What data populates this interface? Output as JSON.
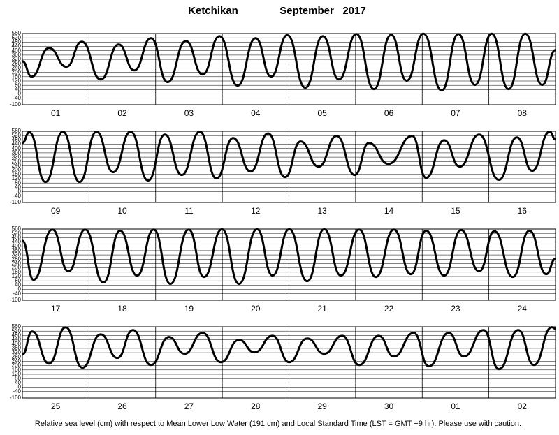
{
  "title": "Ketchikan",
  "period": "September   2017",
  "note": "Relative sea level (cm) with respect to Mean Lower Low Water (191 cm) and Local Standard Time (LST = GMT −9 hr). Please use with caution.",
  "chart_data": [
    {
      "type": "line",
      "color": "#000000",
      "categories": [
        "01",
        "02",
        "03",
        "04",
        "05",
        "06",
        "07",
        "08"
      ],
      "xlim": [
        0,
        192
      ],
      "x": [
        0,
        3.3,
        9.6,
        15.9,
        21.4,
        28.2,
        34.7,
        40.3,
        46.3,
        52.3,
        58.9,
        64.9,
        71,
        77.5,
        84,
        89.6,
        95.4,
        101.9,
        108.2,
        114,
        120.3,
        126.6,
        132.8,
        138.4,
        144.4,
        151,
        157,
        163,
        169,
        175.1,
        181.1,
        187.2,
        192
      ],
      "values": [
        303,
        161,
        426,
        252,
        484,
        135,
        458,
        219,
        516,
        110,
        490,
        181,
        535,
        77,
        516,
        161,
        545,
        58,
        535,
        135,
        555,
        45,
        548,
        123,
        558,
        32,
        555,
        84,
        558,
        45,
        558,
        84,
        406
      ],
      "ylim": [
        -100,
        560
      ],
      "yticks": [
        -100,
        -40,
        0,
        40,
        80,
        120,
        160,
        200,
        240,
        280,
        320,
        360,
        400,
        440,
        480,
        520,
        560
      ]
    },
    {
      "type": "line",
      "color": "#000000",
      "categories": [
        "09",
        "10",
        "11",
        "12",
        "13",
        "14",
        "15",
        "16"
      ],
      "xlim": [
        0,
        192
      ],
      "x": [
        0,
        2.5,
        8.3,
        14.6,
        20.6,
        26.7,
        32.7,
        39,
        45.3,
        51.3,
        57.4,
        63.9,
        69.9,
        75.9,
        82.2,
        88.5,
        94.6,
        100.2,
        106.7,
        113.2,
        119.7,
        124.8,
        131.8,
        140.4,
        145.4,
        151.9,
        157.5,
        164.5,
        171.6,
        178.1,
        183.6,
        189.9,
        192
      ],
      "values": [
        452,
        550,
        90,
        555,
        90,
        555,
        181,
        555,
        103,
        529,
        155,
        555,
        123,
        497,
        187,
        540,
        135,
        465,
        232,
        516,
        155,
        452,
        258,
        516,
        129,
        477,
        232,
        529,
        110,
        503,
        194,
        555,
        484
      ],
      "ylim": [
        -100,
        560
      ],
      "yticks": [
        -100,
        -40,
        0,
        40,
        80,
        120,
        160,
        200,
        240,
        280,
        320,
        360,
        400,
        440,
        480,
        520,
        560
      ]
    },
    {
      "type": "line",
      "color": "#000000",
      "categories": [
        "17",
        "18",
        "19",
        "20",
        "21",
        "22",
        "23",
        "24"
      ],
      "xlim": [
        0,
        192
      ],
      "x": [
        0,
        4,
        10.8,
        16.6,
        22.6,
        29.2,
        35.2,
        41.3,
        47.3,
        53.3,
        59.9,
        65.4,
        71.9,
        78,
        84.5,
        90.1,
        96.1,
        102.6,
        108.7,
        114.7,
        121.3,
        127.3,
        133.8,
        139.9,
        145.4,
        151.9,
        158,
        164.5,
        170,
        176.6,
        182.6,
        188.7,
        192
      ],
      "values": [
        452,
        90,
        555,
        168,
        555,
        65,
        545,
        129,
        555,
        52,
        555,
        116,
        558,
        52,
        558,
        129,
        558,
        77,
        558,
        129,
        555,
        116,
        555,
        142,
        545,
        129,
        550,
        168,
        540,
        116,
        545,
        142,
        284
      ],
      "ylim": [
        -100,
        560
      ],
      "yticks": [
        -100,
        -40,
        0,
        40,
        80,
        120,
        160,
        200,
        240,
        280,
        320,
        360,
        400,
        440,
        480,
        520,
        560
      ]
    },
    {
      "type": "line",
      "color": "#000000",
      "categories": [
        "25",
        "26",
        "27",
        "28",
        "29",
        "30",
        "01",
        "02"
      ],
      "xlim": [
        0,
        192
      ],
      "x": [
        0,
        3.5,
        9.6,
        15.6,
        21.6,
        28.2,
        34.2,
        39.8,
        46.3,
        52.8,
        58.4,
        64.9,
        71.5,
        78,
        83.6,
        90.1,
        96.1,
        102.6,
        108.7,
        115.2,
        121.3,
        128.3,
        133.8,
        140.9,
        146.4,
        153.5,
        159,
        166.1,
        171.6,
        178.6,
        184.2,
        190.7,
        192
      ],
      "values": [
        303,
        516,
        219,
        555,
        181,
        490,
        271,
        529,
        206,
        465,
        310,
        503,
        232,
        439,
        323,
        477,
        232,
        452,
        310,
        477,
        206,
        477,
        284,
        503,
        194,
        503,
        284,
        529,
        168,
        529,
        206,
        556,
        542
      ],
      "ylim": [
        -100,
        560
      ],
      "yticks": [
        -100,
        -40,
        0,
        40,
        80,
        120,
        160,
        200,
        240,
        280,
        320,
        360,
        400,
        440,
        480,
        520,
        560
      ]
    }
  ]
}
